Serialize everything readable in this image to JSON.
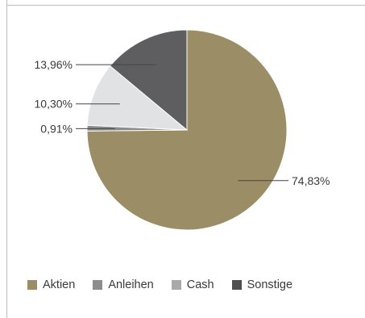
{
  "chart_data": {
    "type": "pie",
    "title": "",
    "slices": [
      {
        "label": "Aktien",
        "value": 74.83,
        "display": "74,83%",
        "color": "#9b8d66"
      },
      {
        "label": "Anleihen",
        "value": 0.91,
        "display": "0,91%",
        "color": "#8c8c8c"
      },
      {
        "label": "Cash",
        "value": 10.3,
        "display": "10,30%",
        "color": "#e1e2e4"
      },
      {
        "label": "Sonstige",
        "value": 13.96,
        "display": "13,96%",
        "color": "#5e5e60"
      }
    ],
    "legend": {
      "position": "bottom-left",
      "items": [
        {
          "label": "Aktien",
          "color": "#9b8d66"
        },
        {
          "label": "Anleihen",
          "color": "#8c8c8c"
        },
        {
          "label": "Cash",
          "color": "#a9a9a9"
        },
        {
          "label": "Sonstige",
          "color": "#4f4f51"
        }
      ]
    }
  }
}
